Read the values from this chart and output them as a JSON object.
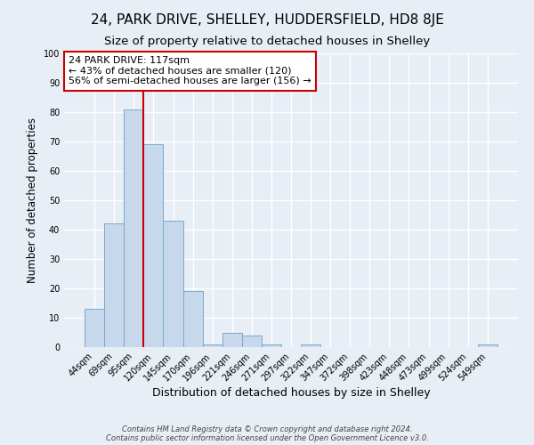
{
  "title1": "24, PARK DRIVE, SHELLEY, HUDDERSFIELD, HD8 8JE",
  "title2": "Size of property relative to detached houses in Shelley",
  "xlabel": "Distribution of detached houses by size in Shelley",
  "ylabel": "Number of detached properties",
  "categories": [
    "44sqm",
    "69sqm",
    "95sqm",
    "120sqm",
    "145sqm",
    "170sqm",
    "196sqm",
    "221sqm",
    "246sqm",
    "271sqm",
    "297sqm",
    "322sqm",
    "347sqm",
    "372sqm",
    "398sqm",
    "423sqm",
    "448sqm",
    "473sqm",
    "499sqm",
    "524sqm",
    "549sqm"
  ],
  "values": [
    13,
    42,
    81,
    69,
    43,
    19,
    1,
    5,
    4,
    1,
    0,
    1,
    0,
    0,
    0,
    0,
    0,
    0,
    0,
    0,
    1
  ],
  "bar_color": "#c8d8ec",
  "bar_edge_color": "#7aaac8",
  "ylim": [
    0,
    100
  ],
  "yticks": [
    0,
    10,
    20,
    30,
    40,
    50,
    60,
    70,
    80,
    90,
    100
  ],
  "vline_color": "#cc0000",
  "annotation_title": "24 PARK DRIVE: 117sqm",
  "annotation_line1": "← 43% of detached houses are smaller (120)",
  "annotation_line2": "56% of semi-detached houses are larger (156) →",
  "annotation_box_color": "#ffffff",
  "annotation_box_edge": "#cc0000",
  "background_color": "#e8eef5",
  "grid_color": "#ffffff",
  "footer1": "Contains HM Land Registry data © Crown copyright and database right 2024.",
  "footer2": "Contains public sector information licensed under the Open Government Licence v3.0.",
  "title1_fontsize": 11,
  "title2_fontsize": 9.5
}
